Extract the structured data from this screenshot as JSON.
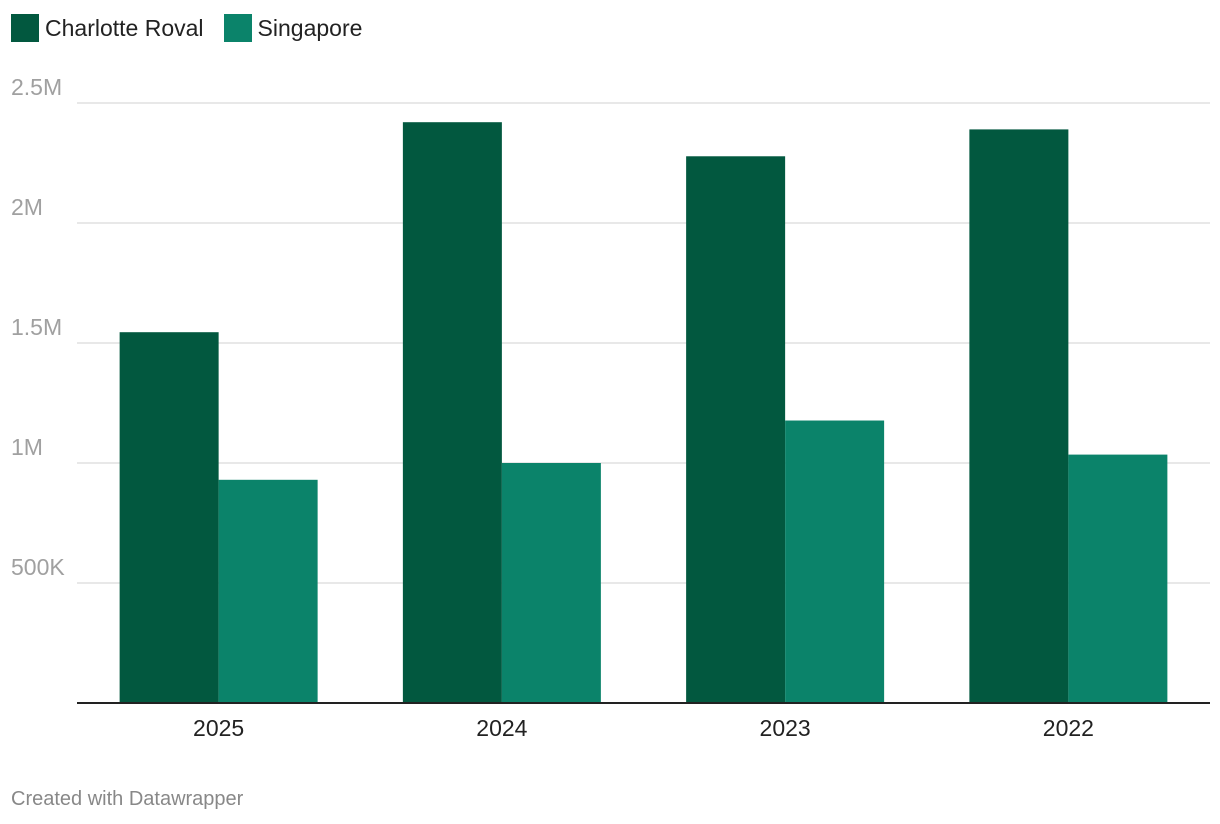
{
  "colors": {
    "charlotte": "#02583f",
    "singapore": "#0b836a",
    "grid": "#e1e1e1",
    "axis": "#222222",
    "tick_text": "#a0a0a0",
    "category_text": "#222222"
  },
  "footer": {
    "credit": "Created with Datawrapper"
  },
  "chart_data": {
    "type": "bar",
    "categories": [
      "2025",
      "2024",
      "2023",
      "2022"
    ],
    "series": [
      {
        "name": "Charlotte Roval",
        "color": "#02583f",
        "values": [
          1545000,
          2420000,
          2278000,
          2390000
        ]
      },
      {
        "name": "Singapore",
        "color": "#0b836a",
        "values": [
          930000,
          1000000,
          1177000,
          1035000
        ]
      }
    ],
    "ylim": [
      0,
      2500000
    ],
    "yticks": [
      {
        "value": 500000,
        "label": "500K"
      },
      {
        "value": 1000000,
        "label": "1M"
      },
      {
        "value": 1500000,
        "label": "1.5M"
      },
      {
        "value": 2000000,
        "label": "2M"
      },
      {
        "value": 2500000,
        "label": "2.5M"
      }
    ],
    "grid": true,
    "legend_position": "top-left"
  }
}
